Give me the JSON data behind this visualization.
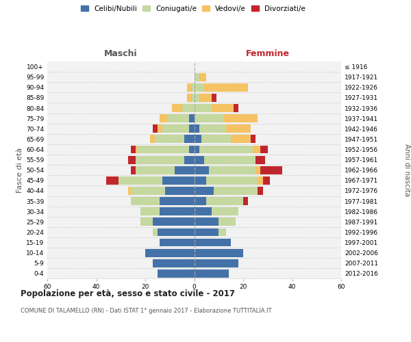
{
  "age_groups": [
    "100+",
    "95-99",
    "90-94",
    "85-89",
    "80-84",
    "75-79",
    "70-74",
    "65-69",
    "60-64",
    "55-59",
    "50-54",
    "45-49",
    "40-44",
    "35-39",
    "30-34",
    "25-29",
    "20-24",
    "15-19",
    "10-14",
    "5-9",
    "0-4"
  ],
  "birth_years": [
    "≤ 1916",
    "1917-1921",
    "1922-1926",
    "1927-1931",
    "1932-1936",
    "1937-1941",
    "1942-1946",
    "1947-1951",
    "1952-1956",
    "1957-1961",
    "1962-1966",
    "1967-1971",
    "1972-1976",
    "1977-1981",
    "1982-1986",
    "1987-1991",
    "1992-1996",
    "1997-2001",
    "2002-2006",
    "2007-2011",
    "2012-2016"
  ],
  "male": {
    "celibi": [
      0,
      0,
      0,
      0,
      0,
      2,
      2,
      4,
      2,
      4,
      8,
      13,
      12,
      14,
      14,
      17,
      15,
      14,
      20,
      17,
      15
    ],
    "coniugati": [
      0,
      0,
      1,
      1,
      5,
      9,
      11,
      12,
      21,
      20,
      16,
      18,
      14,
      12,
      8,
      5,
      2,
      0,
      0,
      0,
      0
    ],
    "vedovi": [
      0,
      0,
      2,
      2,
      4,
      3,
      2,
      2,
      1,
      0,
      0,
      0,
      1,
      0,
      0,
      0,
      0,
      0,
      0,
      0,
      0
    ],
    "divorziati": [
      0,
      0,
      0,
      0,
      0,
      0,
      2,
      0,
      2,
      3,
      2,
      5,
      0,
      0,
      0,
      0,
      0,
      0,
      0,
      0,
      0
    ]
  },
  "female": {
    "nubili": [
      0,
      0,
      0,
      0,
      0,
      0,
      2,
      3,
      2,
      4,
      6,
      5,
      8,
      5,
      7,
      10,
      10,
      15,
      20,
      18,
      14
    ],
    "coniugate": [
      0,
      2,
      4,
      2,
      7,
      12,
      11,
      12,
      22,
      21,
      19,
      21,
      18,
      15,
      11,
      7,
      3,
      0,
      0,
      0,
      0
    ],
    "vedove": [
      0,
      3,
      18,
      5,
      9,
      14,
      10,
      8,
      3,
      0,
      2,
      2,
      0,
      0,
      0,
      0,
      0,
      0,
      0,
      0,
      0
    ],
    "divorziate": [
      0,
      0,
      0,
      2,
      2,
      0,
      0,
      2,
      3,
      4,
      9,
      3,
      2,
      2,
      0,
      0,
      0,
      0,
      0,
      0,
      0
    ]
  },
  "colors": {
    "celibi": "#4472a8",
    "coniugati": "#c5d8a0",
    "vedovi": "#f5c264",
    "divorziati": "#c0272d"
  },
  "title": "Popolazione per età, sesso e stato civile - 2017",
  "subtitle": "COMUNE DI TALAMELLO (RN) - Dati ISTAT 1° gennaio 2017 - Elaborazione TUTTITALIA.IT",
  "xlabel_left": "Maschi",
  "xlabel_right": "Femmine",
  "ylabel_left": "Fasce di età",
  "ylabel_right": "Anni di nascita",
  "xlim": 60,
  "bg_color": "#f2f2f2",
  "legend_labels": [
    "Celibi/Nubili",
    "Coniugati/e",
    "Vedovi/e",
    "Divorziati/e"
  ]
}
